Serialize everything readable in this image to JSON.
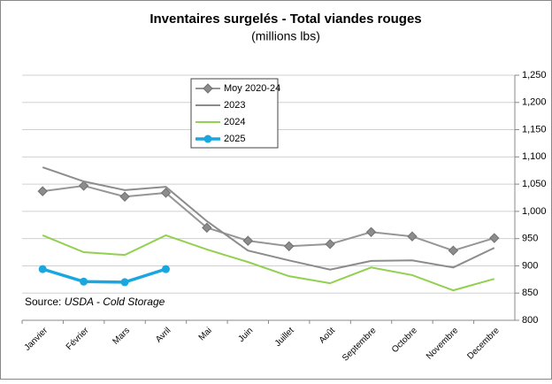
{
  "chart_data": {
    "type": "line",
    "title": "Inventaires surgelés - Total viandes rouges",
    "subtitle": "(millions lbs)",
    "source_label": "Source:",
    "source": "USDA - Cold Storage",
    "categories": [
      "Janvier",
      "Février",
      "Mars",
      "Avril",
      "Mai",
      "Juin",
      "Juillet",
      "Août",
      "Septembre",
      "Octobre",
      "Novembre",
      "Decembre"
    ],
    "series": [
      {
        "name": "Moy 2020-24",
        "color": "#969696",
        "marker": "diamond",
        "values": [
          1037,
          1047,
          1027,
          1034,
          970,
          946,
          936,
          940,
          962,
          954,
          928,
          951
        ]
      },
      {
        "name": "2023",
        "color": "#8c8c8c",
        "values": [
          1081,
          1055,
          1039,
          1045,
          982,
          928,
          910,
          893,
          909,
          910,
          897,
          933
        ]
      },
      {
        "name": "2024",
        "color": "#92d050",
        "values": [
          956,
          925,
          920,
          956,
          930,
          907,
          881,
          868,
          897,
          883,
          855,
          876
        ]
      },
      {
        "name": "2025",
        "color": "#1aa7e0",
        "marker": "circle",
        "values": [
          894,
          871,
          870,
          894,
          null,
          null,
          null,
          null,
          null,
          null,
          null,
          null
        ]
      }
    ],
    "ylim": [
      800,
      1250
    ],
    "yticks": [
      800,
      850,
      900,
      950,
      {
        "value": 1000,
        "label": "1,000"
      },
      {
        "value": 1050,
        "label": "1,050"
      },
      {
        "value": 1100,
        "label": "1,100"
      },
      {
        "value": 1150,
        "label": "1,150"
      },
      {
        "value": 1200,
        "label": "1,200"
      },
      {
        "value": 1250,
        "label": "1,250"
      }
    ],
    "grid": true
  }
}
